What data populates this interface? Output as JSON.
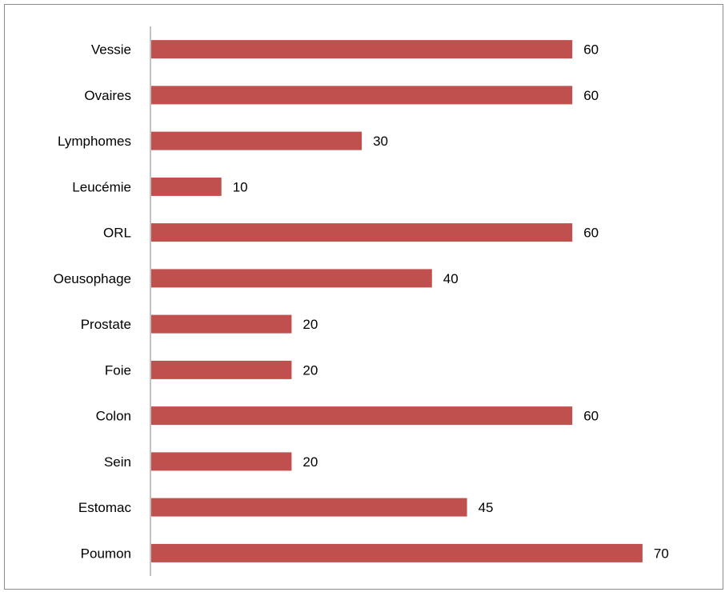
{
  "chart_data": {
    "type": "bar",
    "orientation": "horizontal",
    "categories": [
      "Vessie",
      "Ovaires",
      "Lymphomes",
      "Leucémie",
      "ORL",
      "Oeusophage",
      "Prostate",
      "Foie",
      "Colon",
      "Sein",
      "Estomac",
      "Poumon"
    ],
    "values": [
      60,
      60,
      30,
      10,
      60,
      40,
      20,
      20,
      60,
      20,
      45,
      70
    ],
    "value_labels": [
      "60",
      "60",
      "30",
      "10",
      "60",
      "40",
      "20",
      "20",
      "60",
      "20",
      "45",
      "70"
    ],
    "title": "",
    "xlabel": "",
    "ylabel": "",
    "xlim": [
      0,
      80
    ],
    "grid": false,
    "legend": "none",
    "bar_color": "#c0504d",
    "axis_color": "#868686"
  }
}
